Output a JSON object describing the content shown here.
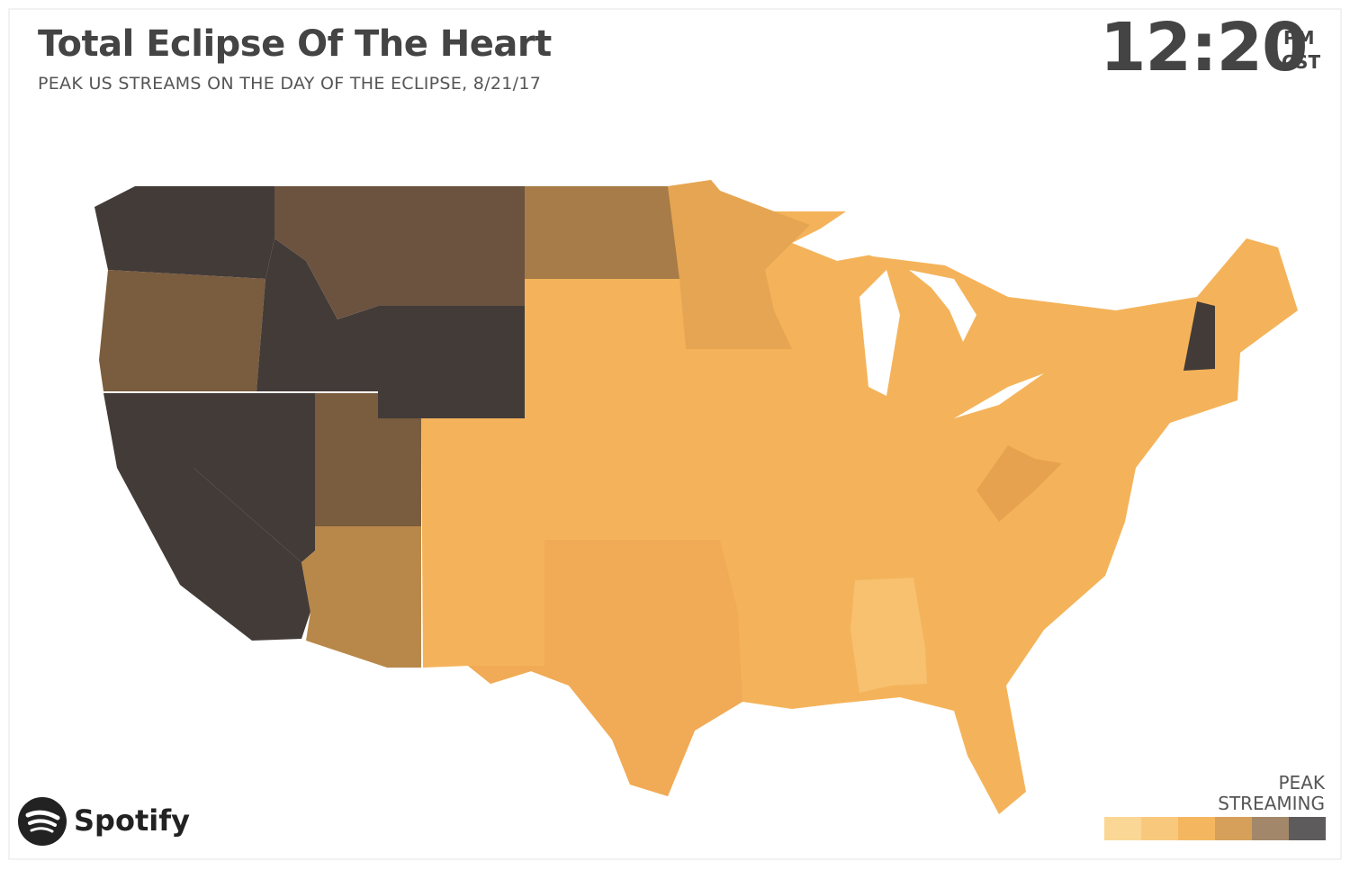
{
  "header": {
    "title": "Total Eclipse Of The Heart",
    "subtitle": "PEAK US STREAMS ON THE DAY OF THE ECLIPSE, 8/21/17"
  },
  "clock": {
    "time": "12:20",
    "meridiem": "PM",
    "zone": "CST"
  },
  "brand": {
    "name": "Spotify"
  },
  "legend": {
    "title": [
      "PEAK",
      "STREAMING"
    ],
    "colors": [
      "#fbd795",
      "#f8c97c",
      "#f4b760",
      "#d6a05a",
      "#a3876a",
      "#5d5b5b"
    ]
  }
}
